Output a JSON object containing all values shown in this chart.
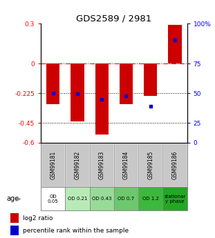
{
  "title": "GDS2589 / 2981",
  "samples": [
    "GSM99181",
    "GSM99182",
    "GSM99183",
    "GSM99184",
    "GSM99185",
    "GSM99186"
  ],
  "log2_ratios": [
    -0.31,
    -0.44,
    -0.535,
    -0.31,
    -0.245,
    0.29
  ],
  "percentile_ranks": [
    0.42,
    0.41,
    0.365,
    0.395,
    0.305,
    0.865
  ],
  "age_labels": [
    "OD\n0.05",
    "OD 0.21",
    "OD 0.43",
    "OD 0.7",
    "OD 1.2",
    "stationar\ny phase"
  ],
  "age_colors": [
    "#ffffff",
    "#b8eab8",
    "#98da98",
    "#6cc86c",
    "#3cb83c",
    "#22a822"
  ],
  "left_yticks": [
    0.3,
    0,
    -0.225,
    -0.45,
    -0.6
  ],
  "left_yticklabels": [
    "0.3",
    "0",
    "-0.225",
    "-0.45",
    "-0.6"
  ],
  "right_ytick_positions": [
    0.3,
    0,
    -0.225,
    -0.45,
    -0.6
  ],
  "right_yticklabels": [
    "100%",
    "75",
    "50",
    "25",
    "0"
  ],
  "bar_color": "#cc0000",
  "dot_color": "#0000cc",
  "dotted_lines": [
    -0.225,
    -0.45
  ],
  "bar_width": 0.55,
  "ylim": [
    -0.6,
    0.3
  ],
  "sample_bg_color": "#c8c8c8",
  "legend_dot_label": "percentile rank within the sample",
  "legend_bar_label": "log2 ratio"
}
